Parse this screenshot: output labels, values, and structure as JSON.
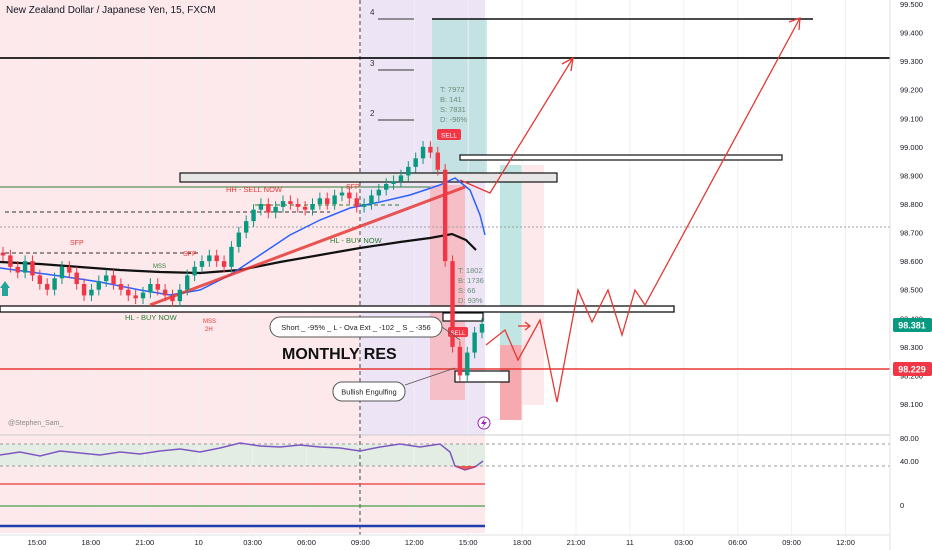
{
  "header": {
    "symbol_title": "New Zealand Dollar / Japanese Yen, 15, FXCM"
  },
  "colors": {
    "up_candle": "#089981",
    "down_candle": "#f23645",
    "accent_red": "#e53935",
    "price_line": "#e53935",
    "current_badge": "#089981",
    "ma_blue": "#2962ff",
    "rsi_purple": "#7e57c2",
    "pink_zone": "#fde8ec",
    "purple_zone": "#ede4f6",
    "teal_zone": "#b2dfdb"
  },
  "annotations": {
    "monthly_res": "MONTHLY RES",
    "short_box": "Short _ -95% _ L  -  Ova Ext _ -102 _ S _ -356",
    "bullish_engulfing": "Bullish Engulfing",
    "hh_sell_now": "HH - SELL NOW",
    "hl_buy_now": "HL - BUY NOW",
    "hl_buy_now_low": "HL - BUY NOW",
    "sfp_left": "SFP",
    "sfp_mid": "SFP",
    "sfp_top": "SFP",
    "mss_left": "MSS",
    "mss_low": "MSS",
    "mss_low_tf": "2H",
    "watermark": "@Stephen_Sam_",
    "fib_levels": [
      "4",
      "3",
      "2"
    ],
    "stats_top": [
      "T: 7972",
      "B: 141",
      "S: 7831",
      "D: -96%"
    ],
    "stats_bottom": [
      "T: 1802",
      "B: 1736",
      "S: 66",
      "D: 93%"
    ],
    "sell_tag": "SELL",
    "sell_tag_2": "SELL"
  },
  "price_badges": {
    "current": "98.381",
    "red_line": "98.229"
  },
  "chart_data": {
    "type": "candlestick",
    "title": "New Zealand Dollar / Japanese Yen, 15, FXCM",
    "ylim": [
      98.0,
      99.55
    ],
    "y_ticks": [
      "99.500",
      "99.400",
      "99.300",
      "99.200",
      "99.100",
      "99.000",
      "98.900",
      "98.800",
      "98.700",
      "98.600",
      "98.500",
      "98.400",
      "98.300",
      "98.200",
      "98.100"
    ],
    "x_ticks": [
      "15:00",
      "18:00",
      "21:00",
      "10",
      "03:00",
      "06:00",
      "09:00",
      "12:00",
      "15:00",
      "18:00",
      "21:00",
      "11",
      "03:00",
      "06:00",
      "09:00",
      "12:00"
    ],
    "horizontal_levels": [
      99.31,
      98.229
    ],
    "resistance_band": [
      98.435,
      98.445
    ],
    "rsi": {
      "ticks": [
        "80.00",
        "40.00",
        "0"
      ],
      "levels": [
        80,
        40
      ]
    },
    "candles_close_path": [
      98.62,
      98.58,
      98.56,
      98.6,
      98.55,
      98.52,
      98.5,
      98.54,
      98.58,
      98.56,
      98.52,
      98.48,
      98.5,
      98.53,
      98.55,
      98.52,
      98.5,
      98.48,
      98.47,
      98.49,
      98.52,
      98.5,
      98.48,
      98.46,
      98.5,
      98.55,
      98.58,
      98.6,
      98.62,
      98.6,
      98.58,
      98.65,
      98.7,
      98.74,
      98.78,
      98.8,
      98.77,
      98.79,
      98.81,
      98.8,
      98.79,
      98.78,
      98.8,
      98.82,
      98.8,
      98.83,
      98.84,
      98.82,
      98.79,
      98.8,
      98.83,
      98.85,
      98.87,
      98.88,
      98.9,
      98.93,
      98.96,
      99.0,
      98.98,
      98.92,
      98.6,
      98.3,
      98.2,
      98.28,
      98.35,
      98.38
    ],
    "projection_path": [
      [
        98.38,
        98.4
      ],
      [
        98.3,
        98.22
      ],
      [
        98.45,
        98.35
      ],
      [
        98.48,
        98.4
      ],
      [
        98.5,
        99.5
      ]
    ]
  }
}
